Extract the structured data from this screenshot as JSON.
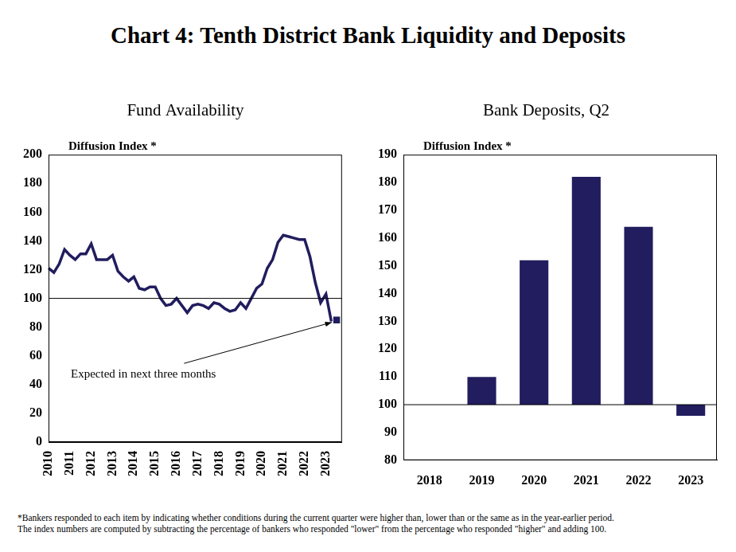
{
  "title": "Chart 4: Tenth District Bank Liquidity and Deposits",
  "footnote": [
    "*Bankers responded to each item by indicating whether conditions during the current quarter were higher than,  lower than or the same as in the year-earlier period.",
    "The index numbers are computed by subtracting the percentage of bankers who responded \"lower\" from the percentage who responded \"higher\" and adding 100."
  ],
  "chart_data": [
    {
      "type": "line",
      "title": "Fund Availability",
      "y_label": "Diffusion Index *",
      "annotation": "Expected in next three months",
      "categories": [
        "2010",
        null,
        null,
        null,
        "2011",
        null,
        null,
        null,
        "2012",
        null,
        null,
        null,
        "2013",
        null,
        null,
        null,
        "2014",
        null,
        null,
        null,
        "2015",
        null,
        null,
        null,
        "2016",
        null,
        null,
        null,
        "2017",
        null,
        null,
        null,
        "2018",
        null,
        null,
        null,
        "2019",
        null,
        null,
        null,
        "2020",
        null,
        null,
        null,
        "2021",
        null,
        null,
        null,
        "2022",
        null,
        null,
        null,
        "2023",
        null,
        null,
        null
      ],
      "series": [
        {
          "color": "#211d5e",
          "line_style": "solid",
          "marker": "none",
          "values": [
            121,
            118,
            124,
            134,
            130,
            127,
            131,
            131,
            138,
            127,
            127,
            127,
            130,
            119,
            115,
            112,
            115,
            107,
            106,
            108,
            108,
            100,
            95,
            96,
            100,
            95,
            90,
            95,
            96,
            95,
            93,
            97,
            96,
            93,
            91,
            92,
            97,
            93,
            100,
            107,
            110,
            121,
            127,
            139,
            144,
            143,
            142,
            141,
            141,
            129,
            111,
            97,
            103,
            84,
            null,
            null
          ]
        },
        {
          "color": "#211d5e",
          "line_style": "none",
          "marker": "square",
          "values": [
            null,
            null,
            null,
            null,
            null,
            null,
            null,
            null,
            null,
            null,
            null,
            null,
            null,
            null,
            null,
            null,
            null,
            null,
            null,
            null,
            null,
            null,
            null,
            null,
            null,
            null,
            null,
            null,
            null,
            null,
            null,
            null,
            null,
            null,
            null,
            null,
            null,
            null,
            null,
            null,
            null,
            null,
            null,
            null,
            null,
            null,
            null,
            null,
            null,
            null,
            null,
            null,
            null,
            null,
            85,
            null
          ]
        }
      ],
      "base": 100,
      "ylim": [
        0,
        200
      ],
      "yticks": [
        0,
        20,
        40,
        60,
        80,
        100,
        120,
        140,
        160,
        180,
        200
      ],
      "grid": false
    },
    {
      "type": "bar",
      "title": "Bank Deposits, Q2",
      "y_label": "Diffusion Index *",
      "categories": [
        "2018",
        "2019",
        "2020",
        "2021",
        "2022",
        "2023"
      ],
      "values": [
        100,
        110,
        152,
        182,
        164,
        96
      ],
      "color": "#211d5e",
      "base": 100,
      "ylim": [
        80,
        190
      ],
      "yticks": [
        80,
        90,
        100,
        110,
        120,
        130,
        140,
        150,
        160,
        170,
        180,
        190
      ],
      "grid": false
    }
  ]
}
